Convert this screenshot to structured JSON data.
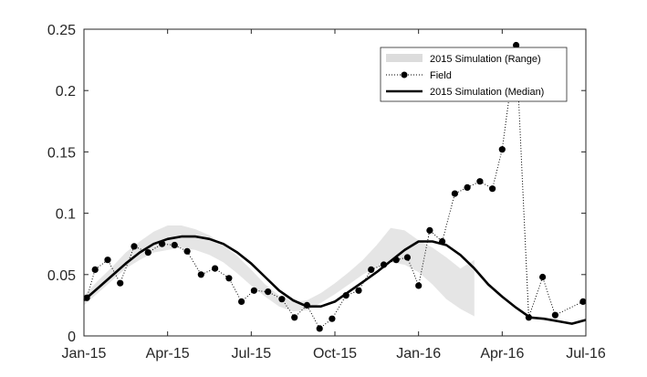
{
  "chart_data": {
    "type": "line",
    "x_tick_labels": [
      "Jan-15",
      "Apr-15",
      "Jul-15",
      "Oct-15",
      "Jan-16",
      "Apr-16",
      "Jul-16"
    ],
    "x_range_months": [
      0,
      18
    ],
    "y_tick_labels": [
      "0",
      "0.05",
      "0.1",
      "0.15",
      "0.2",
      "0.25"
    ],
    "ylim": [
      0,
      0.25
    ],
    "legend": {
      "position": "top-right",
      "entries": [
        "2015 Simulation (Range)",
        "Field",
        "2015 Simulation (Median)"
      ]
    },
    "series": [
      {
        "name": "2015 Simulation (Range)",
        "style": "shaded-band",
        "color": "#dcdcdc",
        "x": [
          0,
          0.5,
          1,
          1.5,
          2,
          2.5,
          3,
          3.5,
          4,
          4.5,
          5,
          5.5,
          6,
          6.5,
          7,
          7.5,
          8,
          8.5,
          9,
          9.5,
          10,
          10.5,
          11,
          11.5,
          12,
          12.5,
          13,
          13.5,
          14
        ],
        "low": [
          0.025,
          0.035,
          0.045,
          0.055,
          0.062,
          0.068,
          0.07,
          0.072,
          0.07,
          0.066,
          0.06,
          0.051,
          0.041,
          0.032,
          0.024,
          0.02,
          0.021,
          0.027,
          0.034,
          0.042,
          0.05,
          0.056,
          0.06,
          0.058,
          0.052,
          0.042,
          0.03,
          0.022,
          0.016
        ],
        "high": [
          0.033,
          0.045,
          0.056,
          0.068,
          0.077,
          0.085,
          0.09,
          0.09,
          0.087,
          0.082,
          0.074,
          0.065,
          0.054,
          0.042,
          0.033,
          0.028,
          0.029,
          0.035,
          0.043,
          0.052,
          0.062,
          0.074,
          0.088,
          0.086,
          0.078,
          0.072,
          0.064,
          0.055,
          0.062
        ]
      },
      {
        "name": "Field",
        "style": "dotted-markers",
        "color": "#000000",
        "x": [
          0.1,
          0.4,
          0.85,
          1.3,
          1.8,
          2.3,
          2.8,
          3.25,
          3.7,
          4.2,
          4.7,
          5.2,
          5.65,
          6.1,
          6.6,
          7.1,
          7.55,
          8.0,
          8.45,
          8.9,
          9.4,
          9.85,
          10.3,
          10.75,
          11.2,
          11.6,
          12.0,
          12.4,
          12.85,
          13.3,
          13.75,
          14.2,
          14.65,
          15.0,
          15.5,
          15.95,
          16.45,
          16.9,
          17.9
        ],
        "y": [
          0.031,
          0.054,
          0.062,
          0.043,
          0.073,
          0.068,
          0.075,
          0.074,
          0.069,
          0.05,
          0.055,
          0.047,
          0.028,
          0.037,
          0.036,
          0.03,
          0.015,
          0.025,
          0.006,
          0.014,
          0.033,
          0.037,
          0.054,
          0.058,
          0.062,
          0.064,
          0.041,
          0.086,
          0.077,
          0.116,
          0.121,
          0.126,
          0.12,
          0.152,
          0.237,
          0.015,
          0.048,
          0.017,
          0.028
        ]
      },
      {
        "name": "2015 Simulation (Median)",
        "style": "thick-line",
        "color": "#000000",
        "x": [
          0,
          0.5,
          1,
          1.5,
          2,
          2.5,
          3,
          3.5,
          4,
          4.5,
          5,
          5.5,
          6,
          6.5,
          7,
          7.5,
          8,
          8.5,
          9,
          9.5,
          10,
          10.5,
          11,
          11.5,
          12,
          12.5,
          13,
          13.5,
          14,
          14.5,
          15,
          15.5,
          16,
          16.5,
          17,
          17.5,
          18
        ],
        "y": [
          0.029,
          0.039,
          0.049,
          0.059,
          0.068,
          0.075,
          0.079,
          0.081,
          0.081,
          0.079,
          0.075,
          0.068,
          0.059,
          0.048,
          0.037,
          0.029,
          0.024,
          0.024,
          0.028,
          0.036,
          0.044,
          0.052,
          0.061,
          0.07,
          0.077,
          0.077,
          0.074,
          0.066,
          0.055,
          0.042,
          0.032,
          0.023,
          0.015,
          0.014,
          0.012,
          0.01,
          0.013
        ]
      }
    ]
  }
}
